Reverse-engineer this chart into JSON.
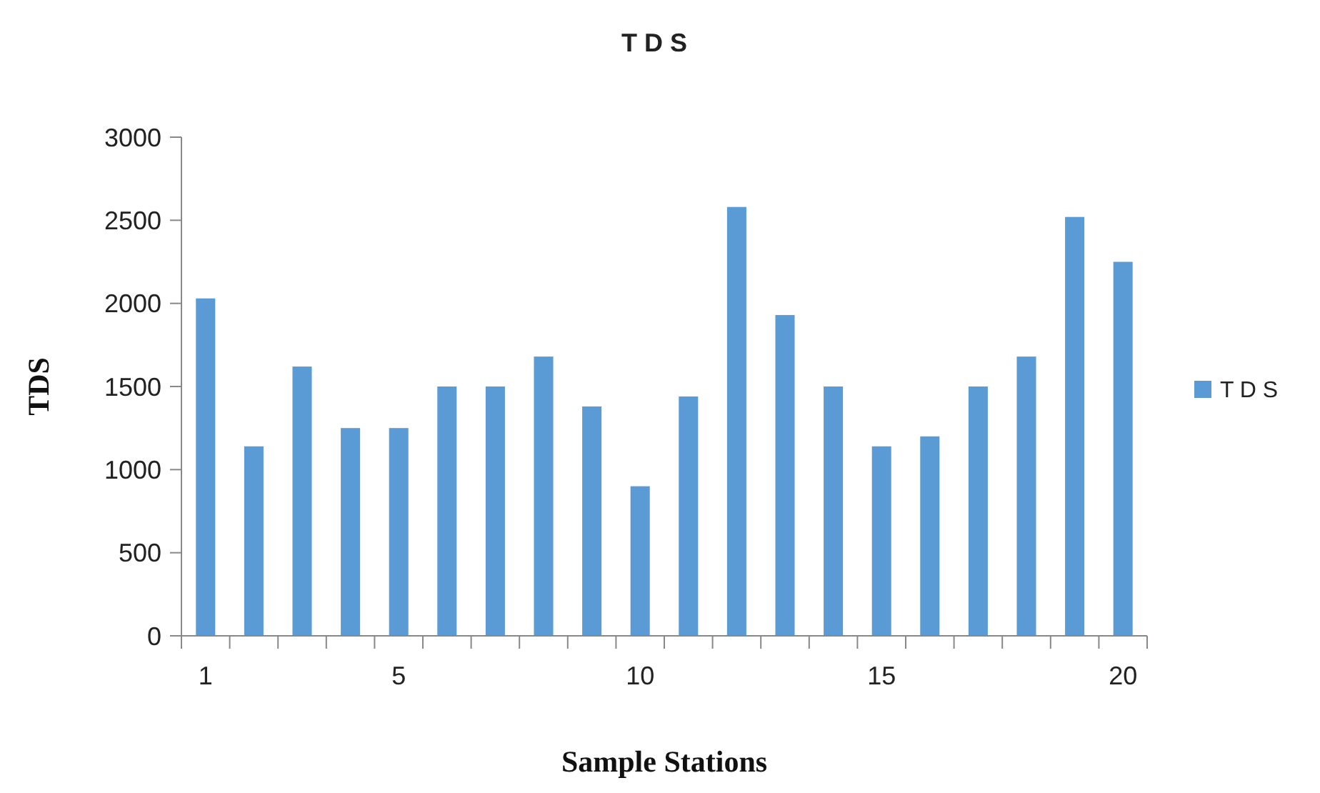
{
  "chart_data": {
    "type": "bar",
    "title": "T D S",
    "xlabel": "Sample Stations",
    "ylabel": "TDS",
    "categories": [
      "1",
      null,
      null,
      null,
      "5",
      null,
      null,
      null,
      null,
      "10",
      null,
      null,
      null,
      null,
      "15",
      null,
      null,
      null,
      null,
      "20"
    ],
    "series": [
      {
        "name": "T D S",
        "color": "#5b9bd5",
        "values": [
          2030,
          1140,
          1620,
          1250,
          1250,
          1500,
          1500,
          1680,
          1380,
          900,
          1440,
          2580,
          1930,
          1500,
          1140,
          1200,
          1500,
          1680,
          2520,
          2250
        ]
      }
    ],
    "ylim": [
      0,
      3000
    ],
    "yticks": [
      0,
      500,
      1000,
      1500,
      2000,
      2500,
      3000
    ],
    "grid": false,
    "legend": "right"
  }
}
